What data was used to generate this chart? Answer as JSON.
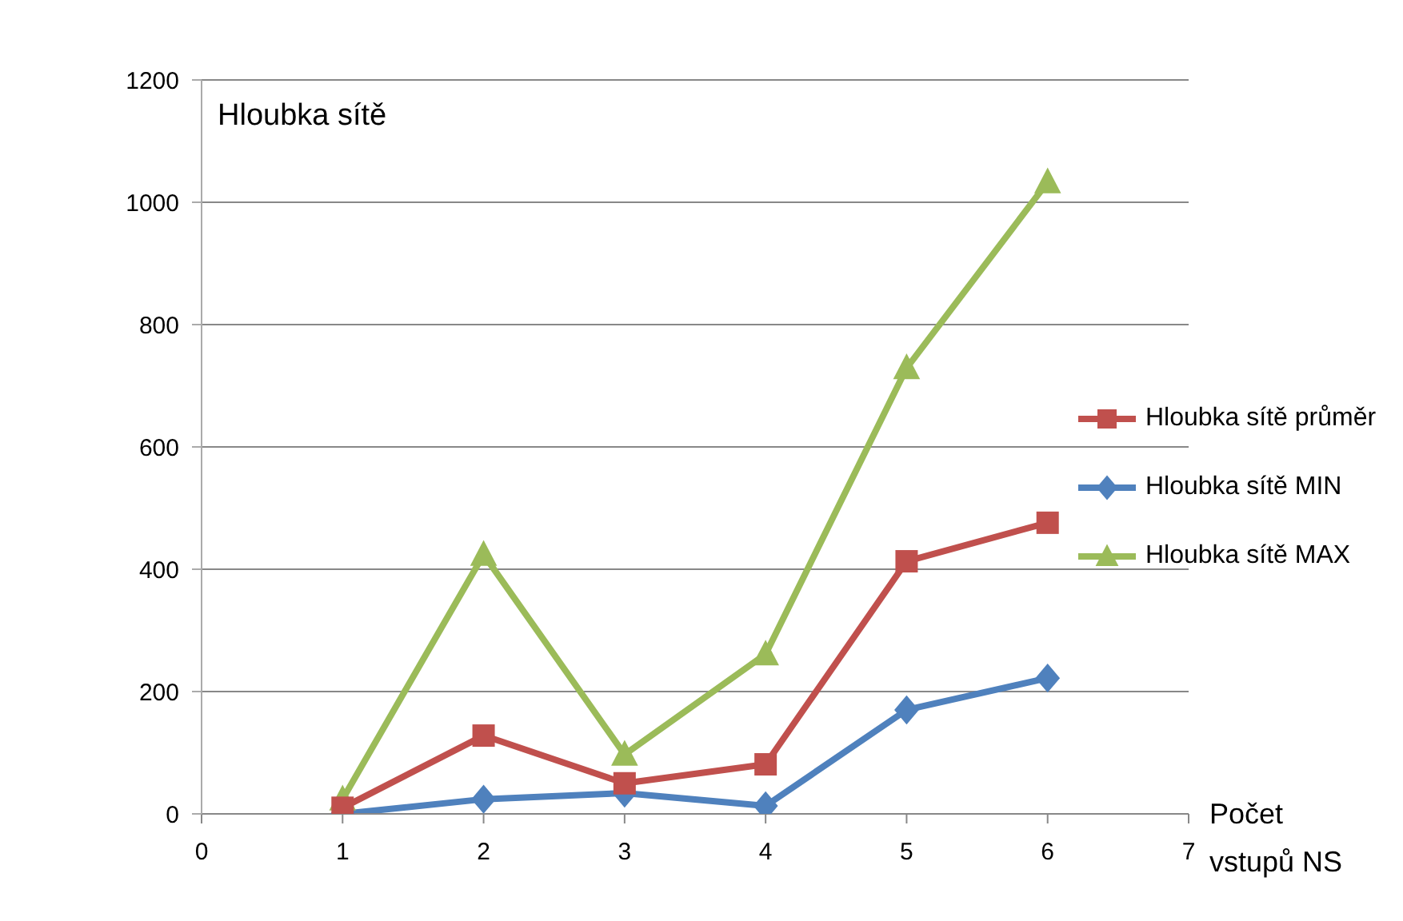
{
  "chart_data": {
    "type": "line",
    "xlabel": "Počet vstupů NS",
    "ylabel": "Hloubka sítě",
    "x": [
      1,
      2,
      3,
      4,
      5,
      6
    ],
    "series": [
      {
        "name": "Hloubka sítě průměr",
        "color": "#c0504d",
        "marker": "square",
        "values": [
          10,
          128,
          50,
          81,
          413,
          476
        ]
      },
      {
        "name": "Hloubka sítě MIN",
        "color": "#4f81bd",
        "marker": "diamond",
        "values": [
          0,
          24,
          34,
          13,
          170,
          222
        ]
      },
      {
        "name": "Hloubka sítě MAX",
        "color": "#9bbb59",
        "marker": "triangle",
        "values": [
          24,
          424,
          97,
          261,
          729,
          1033
        ]
      }
    ],
    "xlim": [
      0,
      7
    ],
    "xticks": [
      0,
      1,
      2,
      3,
      4,
      5,
      6,
      7
    ],
    "ylim": [
      0,
      1200
    ],
    "yticks": [
      0,
      200,
      400,
      600,
      800,
      1000,
      1200
    ],
    "grid": "y",
    "legend": "right"
  }
}
